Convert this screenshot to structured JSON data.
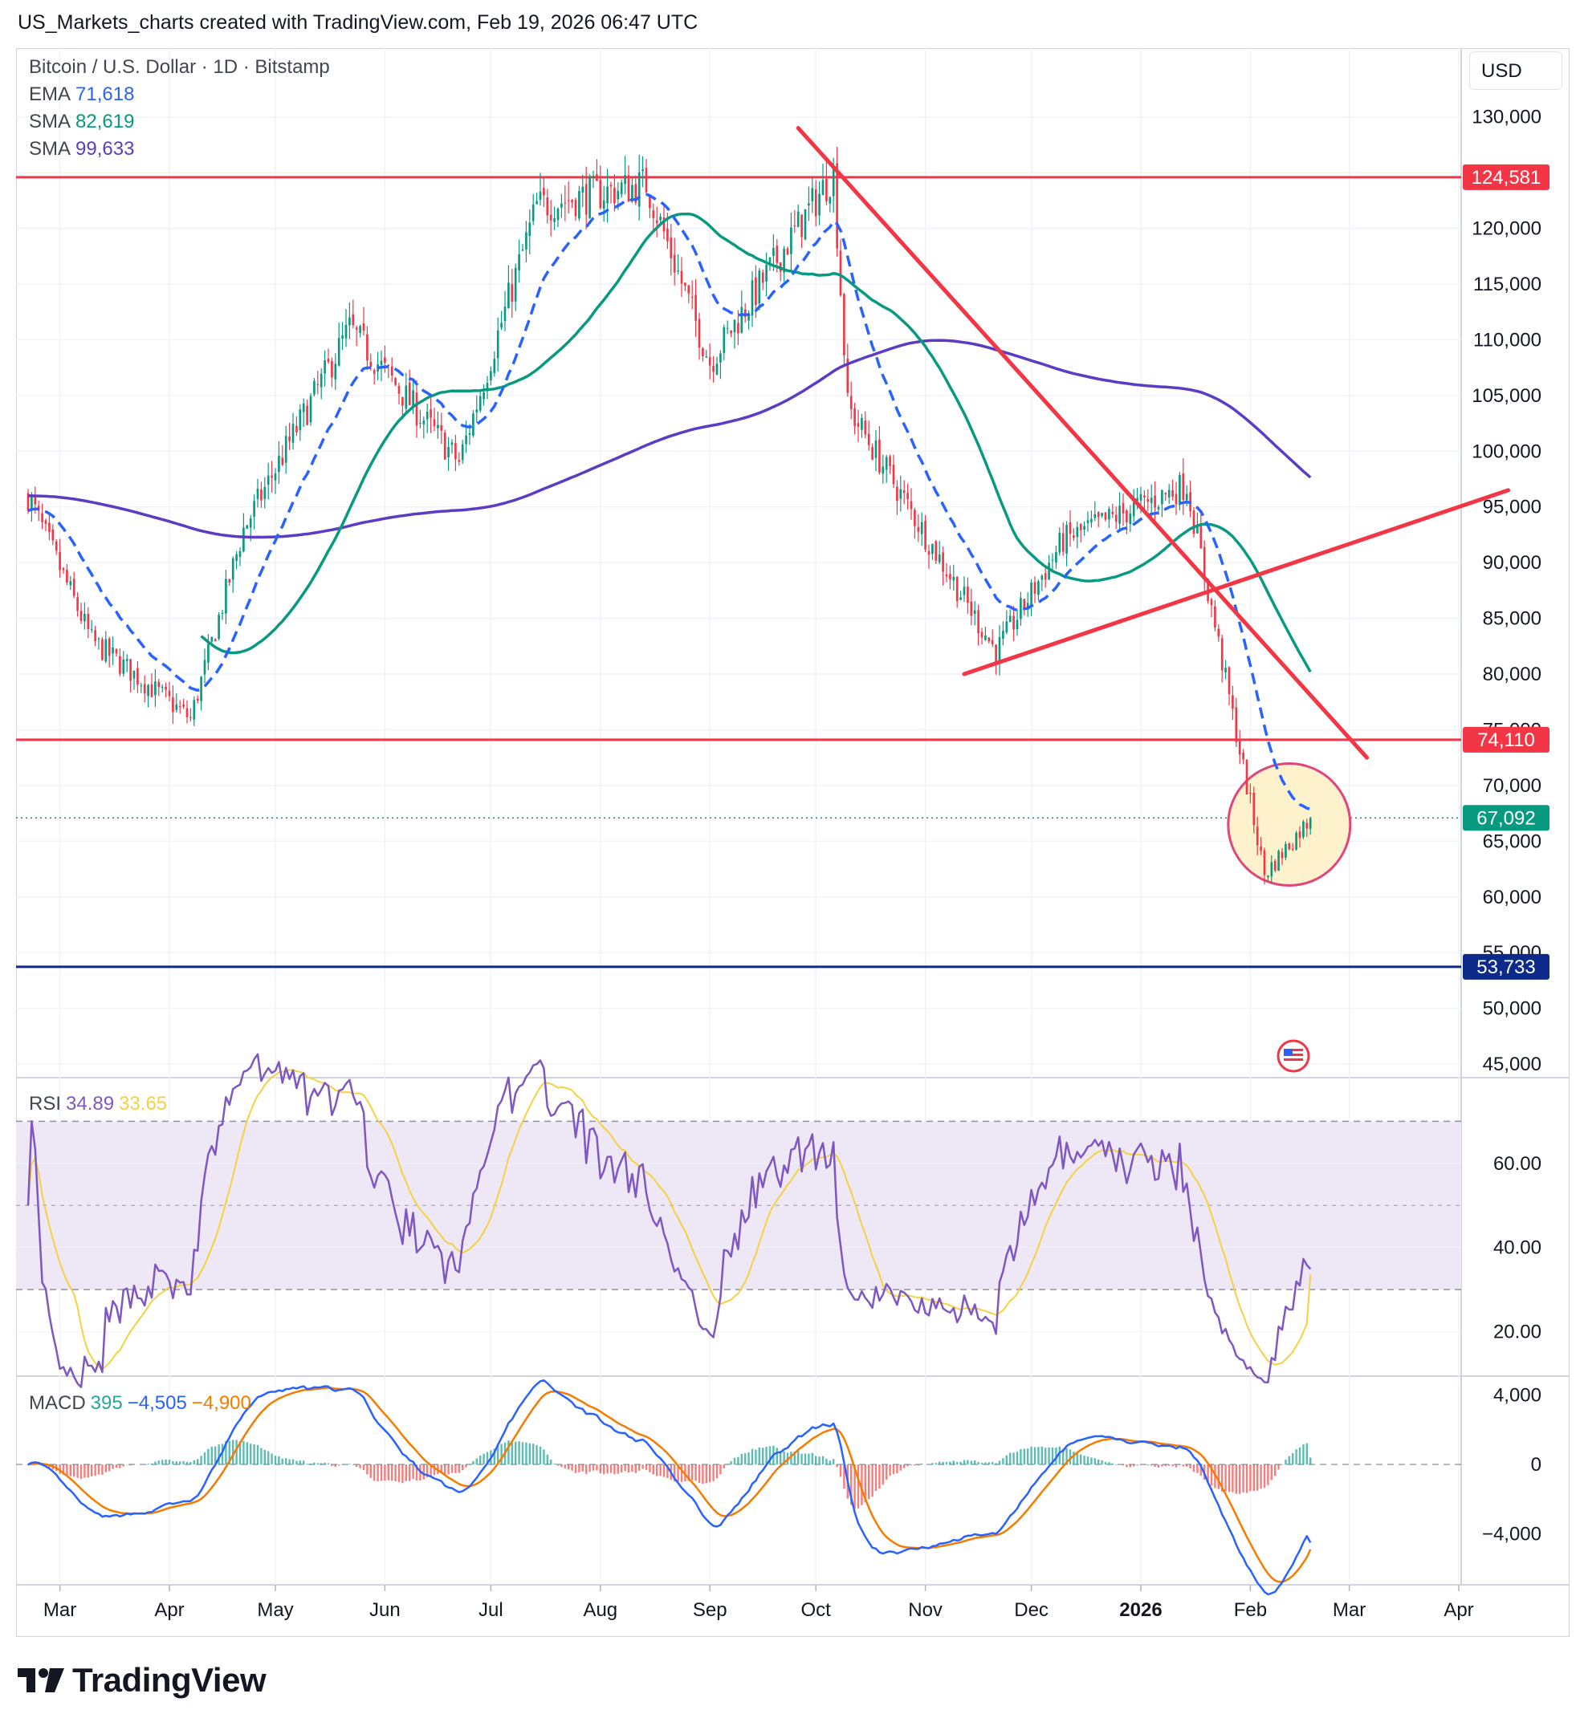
{
  "header": {
    "text": "US_Markets_charts created with TradingView.com, Feb 19, 2026 06:47 UTC"
  },
  "currency_button": "USD",
  "brand": "TradingView",
  "legend": {
    "symbol": "Bitcoin / U.S. Dollar · 1D · Bitstamp",
    "ema": {
      "label": "EMA",
      "value": "71,618"
    },
    "sma50": {
      "label": "SMA",
      "value": "82,619"
    },
    "sma200": {
      "label": "SMA",
      "value": "99,633"
    },
    "rsi": {
      "label": "RSI",
      "value": "34.89",
      "ma": "33.65"
    },
    "macd": {
      "label": "MACD",
      "hist": "395",
      "macd": "−4,505",
      "signal": "−4,900"
    }
  },
  "colors": {
    "up": "#089981",
    "down": "#f23645",
    "ema": "#2962ff",
    "sma50": "#089981",
    "sma200": "#5b3cc4",
    "trend": "#f23645",
    "support": "#0d2a8a",
    "rsi": "#7e57c2",
    "rsi_ma": "#f5d142",
    "rsi_band": "#ede7f6",
    "macd": "#2962ff",
    "signal": "#f57c00",
    "circle_fill": "#fdf2cc",
    "circle_stroke": "#e0457b"
  },
  "chart_data": [
    {
      "type": "candlestick",
      "title": "Bitcoin / U.S. Dollar · 1D · Bitstamp",
      "x_ticks": [
        "Mar",
        "Apr",
        "May",
        "Jun",
        "Jul",
        "Aug",
        "Sep",
        "Oct",
        "Nov",
        "Dec",
        "2026",
        "Feb",
        "Mar",
        "Apr"
      ],
      "y_ticks": [
        45000,
        50000,
        55000,
        60000,
        65000,
        70000,
        75000,
        80000,
        85000,
        90000,
        95000,
        100000,
        105000,
        110000,
        115000,
        120000,
        125000,
        130000
      ],
      "y_tick_labels": [
        "45,000",
        "50,000",
        "55,000",
        "60,000",
        "65,000",
        "70,000",
        "75,000",
        "80,000",
        "85,000",
        "90,000",
        "95,000",
        "100,000",
        "105,000",
        "110,000",
        "115,000",
        "120,000",
        "125,000",
        "130,000"
      ],
      "ylim": [
        44000,
        133000
      ],
      "price_line": {
        "value": 67092,
        "label": "67,092"
      },
      "horizontal_levels": [
        {
          "value": 124581,
          "label": "124,581"
        },
        {
          "value": 74110,
          "label": "74,110"
        },
        {
          "value": 53733,
          "label": "53,733"
        }
      ],
      "trendlines": [
        {
          "name": "descending resistance",
          "from": [
            "2025-09-26",
            129000
          ],
          "to": [
            "2026-03-06",
            72500
          ]
        },
        {
          "name": "ascending support",
          "from": [
            "2025-11-12",
            80000
          ],
          "to": [
            "2026-04-15",
            96500
          ]
        }
      ],
      "highlight_circle": {
        "center": [
          "2026-02-12",
          66500
        ]
      },
      "candles_monthly_approx": [
        {
          "date": "2025-02-20",
          "close": 96000
        },
        {
          "date": "2025-03-10",
          "close": 83000
        },
        {
          "date": "2025-04-07",
          "close": 76000
        },
        {
          "date": "2025-04-22",
          "close": 93000
        },
        {
          "date": "2025-05-22",
          "close": 111000
        },
        {
          "date": "2025-06-22",
          "close": 99000
        },
        {
          "date": "2025-07-14",
          "close": 122000
        },
        {
          "date": "2025-08-14",
          "close": 124000
        },
        {
          "date": "2025-09-01",
          "close": 108000
        },
        {
          "date": "2025-10-06",
          "close": 125000
        },
        {
          "date": "2025-10-10",
          "close": 104000
        },
        {
          "date": "2025-11-21",
          "close": 82000
        },
        {
          "date": "2025-12-10",
          "close": 92000
        },
        {
          "date": "2026-01-14",
          "close": 97000
        },
        {
          "date": "2026-02-05",
          "close": 62000
        },
        {
          "date": "2026-02-18",
          "close": 67092
        }
      ],
      "series": [
        {
          "name": "EMA",
          "value": 71618
        },
        {
          "name": "SMA",
          "value": 82619
        },
        {
          "name": "SMA",
          "value": 99633
        }
      ]
    },
    {
      "type": "line",
      "title": "RSI",
      "y_ticks": [
        20,
        40,
        60
      ],
      "y_tick_labels": [
        "20.00",
        "40.00",
        "60.00"
      ],
      "ylim": [
        10,
        80
      ],
      "bands": [
        30,
        50,
        70
      ],
      "series": [
        {
          "name": "RSI",
          "last": 34.89
        },
        {
          "name": "RSI MA",
          "last": 33.65
        }
      ]
    },
    {
      "type": "bar",
      "title": "MACD",
      "y_ticks": [
        -4000,
        0,
        4000
      ],
      "y_tick_labels": [
        "−4,000",
        "0",
        "4,000"
      ],
      "ylim": [
        -6800,
        5000
      ],
      "series": [
        {
          "name": "Histogram",
          "last": 395
        },
        {
          "name": "MACD",
          "last": -4505
        },
        {
          "name": "Signal",
          "last": -4900
        }
      ]
    }
  ]
}
